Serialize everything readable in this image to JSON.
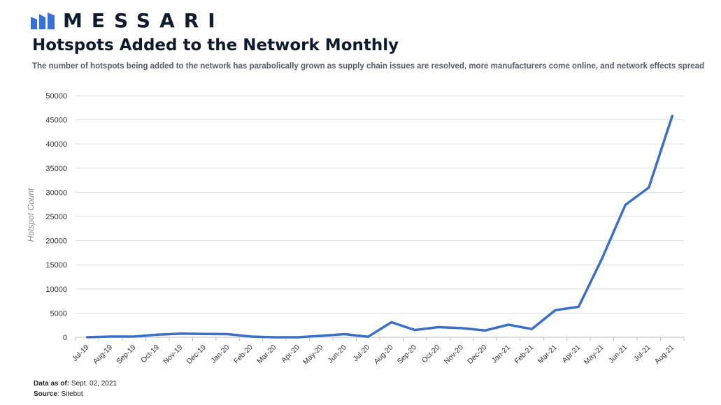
{
  "brand": {
    "name": "MESSARI",
    "logo_icon": "messari-logo-icon",
    "logo_color": "#3a6fd8"
  },
  "chart_data": {
    "type": "line",
    "title": "Hotspots Added to the Network Monthly",
    "subtitle": "The number of hotspots being added to the network has parabolically grown as supply chain issues are resolved, more manufacturers come online, and network effects spread",
    "xlabel": "",
    "ylabel": "Hotspot Count",
    "ylim": [
      0,
      50000
    ],
    "yticks": [
      "0",
      "5000",
      "10000",
      "15000",
      "20000",
      "25000",
      "30000",
      "35000",
      "40000",
      "45000",
      "50000"
    ],
    "grid": true,
    "line_color": "#3b6fc6",
    "categories": [
      "Jul-19",
      "Aug-19",
      "Sep-19",
      "Oct-19",
      "Nov-19",
      "Dec-19",
      "Jan-20",
      "Feb-20",
      "Mar-20",
      "Apr-20",
      "May-20",
      "Jun-20",
      "Jul-20",
      "Aug-20",
      "Sep-20",
      "Oct-20",
      "Nov-20",
      "Dec-20",
      "Jan-21",
      "Feb-21",
      "Mar-21",
      "Apr-21",
      "May-21",
      "Jun-21",
      "Jul-21",
      "Aug-21"
    ],
    "series": [
      {
        "name": "Hotspots Added",
        "values": [
          0,
          150,
          150,
          550,
          750,
          700,
          650,
          150,
          0,
          0,
          300,
          650,
          100,
          3100,
          1500,
          2100,
          1900,
          1400,
          2600,
          1700,
          5600,
          6300,
          16300,
          27400,
          31000,
          45800
        ]
      }
    ]
  },
  "footer": {
    "data_as_of_label": "Data as of:",
    "data_as_of_value": " Sept. 02, 2021",
    "source_label": "Source",
    "source_value": ": Sitebot"
  }
}
